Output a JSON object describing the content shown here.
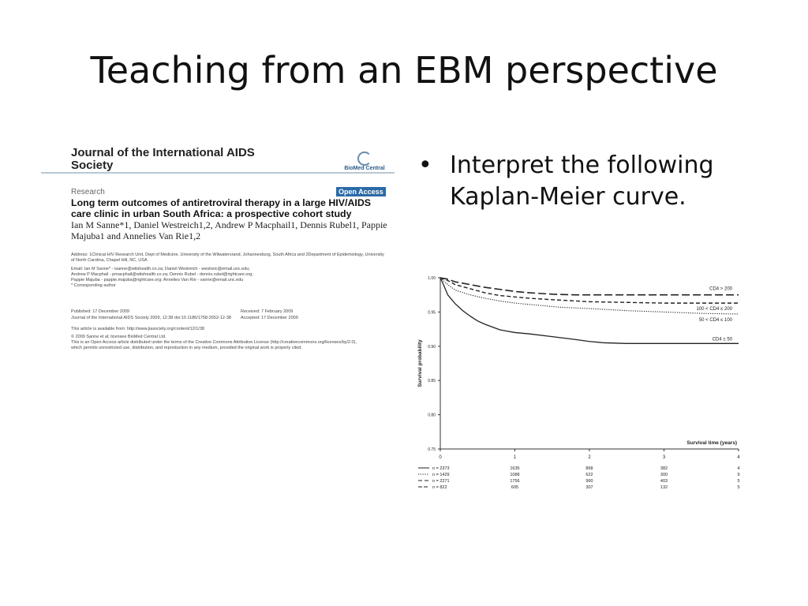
{
  "slide": {
    "title": "Teaching from an EBM perspective",
    "bullet_symbol": "•",
    "bullet_text": "Interpret the following Kaplan-Meier curve."
  },
  "article": {
    "journal": "Journal of the International AIDS Society",
    "publisher": "BioMed Central",
    "type": "Research",
    "open_access": "Open Access",
    "title": "Long term outcomes of antiretroviral therapy in a large HIV/AIDS care clinic in urban South Africa: a prospective cohort study",
    "authors": "Ian M Sanne*1, Daniel Westreich1,2, Andrew P Macphail1, Dennis Rubel1, Pappie Majuba1 and Annelies Van Rie1,2",
    "address": "Address: 1Clinical HIV Research Unit, Dept of Medicine, University of the Witwatersrand, Johannesburg, South Africa and 2Department of Epidemiology, University of North Carolina, Chapel Hill, NC, USA",
    "emails": [
      "Email: Ian M Sanne* - isanne@witshealth.co.za; Daniel Westreich - westreic@email.unc.edu;",
      "Andrew P Macphail - pmacphail@witshealth.co.za; Dennis Rubel - dennis.rubel@rightcare.org;",
      "Pappie Majuba - pappie.majuba@rightcare.org; Annelies Van Rie - vanrie@email.unc.edu",
      "* Corresponding author"
    ],
    "published": "Published: 17 December 2009",
    "citation": "Journal of the International AIDS Society 2009, 12:38   doi:10.1186/1758-2652-12-38",
    "received": "Received: 7 February 2009",
    "accepted": "Accepted: 17 December 2009",
    "available": "This article is available from: http://www.jiasociety.org/content/12/1/38",
    "copyright": "© 2009 Sanne et al; licensee BioMed Central Ltd.",
    "license_1": "This is an Open Access article distributed under the terms of the Creative Commons Attribution License (http://creativecommons.org/licenses/by/2.0),",
    "license_2": "which permits unrestricted use, distribution, and reproduction in any medium, provided the original work is properly cited."
  },
  "chart_data": {
    "type": "line",
    "title": "",
    "xlabel": "Survival time (years)",
    "ylabel": "Survival probability",
    "xlim": [
      0,
      4
    ],
    "ylim": [
      0.75,
      1.0
    ],
    "x_ticks": [
      "0",
      "1",
      "2",
      "3",
      "4"
    ],
    "y_ticks": [
      "0.75",
      "0.80",
      "0.85",
      "0.90",
      "0.95",
      "1.00"
    ],
    "series": [
      {
        "name": "CD4 > 200",
        "style": "long-dash",
        "points": [
          [
            0,
            1.0
          ],
          [
            0.1,
            0.998
          ],
          [
            0.2,
            0.994
          ],
          [
            0.4,
            0.99
          ],
          [
            0.6,
            0.986
          ],
          [
            0.8,
            0.983
          ],
          [
            1.0,
            0.98
          ],
          [
            1.2,
            0.978
          ],
          [
            1.5,
            0.976
          ],
          [
            1.8,
            0.975
          ],
          [
            2.0,
            0.975
          ],
          [
            3.0,
            0.975
          ],
          [
            4.0,
            0.975
          ]
        ],
        "n_at_risk": [
          "822",
          "605",
          "307",
          "132",
          "5"
        ]
      },
      {
        "name": "100 < CD4 ≤ 200",
        "style": "dash",
        "points": [
          [
            0,
            1.0
          ],
          [
            0.1,
            0.996
          ],
          [
            0.2,
            0.99
          ],
          [
            0.4,
            0.984
          ],
          [
            0.6,
            0.978
          ],
          [
            0.8,
            0.974
          ],
          [
            1.0,
            0.972
          ],
          [
            1.2,
            0.97
          ],
          [
            1.5,
            0.968
          ],
          [
            2.0,
            0.965
          ],
          [
            2.5,
            0.964
          ],
          [
            3.0,
            0.963
          ],
          [
            4.0,
            0.963
          ]
        ],
        "n_at_risk": [
          "2271",
          "1756",
          "960",
          "403",
          "5"
        ]
      },
      {
        "name": "50 < CD4 ≤ 100",
        "style": "dot",
        "points": [
          [
            0,
            1.0
          ],
          [
            0.1,
            0.99
          ],
          [
            0.2,
            0.982
          ],
          [
            0.4,
            0.975
          ],
          [
            0.6,
            0.97
          ],
          [
            0.8,
            0.966
          ],
          [
            1.0,
            0.963
          ],
          [
            1.3,
            0.96
          ],
          [
            1.6,
            0.957
          ],
          [
            2.0,
            0.955
          ],
          [
            2.5,
            0.952
          ],
          [
            3.0,
            0.95
          ],
          [
            3.5,
            0.948
          ],
          [
            4.0,
            0.947
          ]
        ],
        "n_at_risk": [
          "1429",
          "1088",
          "622",
          "300",
          "9"
        ]
      },
      {
        "name": "CD4 ≤ 50",
        "style": "solid",
        "points": [
          [
            0,
            1.0
          ],
          [
            0.05,
            0.988
          ],
          [
            0.1,
            0.975
          ],
          [
            0.2,
            0.962
          ],
          [
            0.3,
            0.952
          ],
          [
            0.4,
            0.944
          ],
          [
            0.5,
            0.937
          ],
          [
            0.6,
            0.932
          ],
          [
            0.7,
            0.928
          ],
          [
            0.8,
            0.924
          ],
          [
            1.0,
            0.92
          ],
          [
            1.2,
            0.918
          ],
          [
            1.5,
            0.914
          ],
          [
            1.8,
            0.91
          ],
          [
            2.0,
            0.907
          ],
          [
            2.2,
            0.905
          ],
          [
            2.5,
            0.904
          ],
          [
            3.0,
            0.904
          ],
          [
            4.0,
            0.904
          ]
        ],
        "n_at_risk": [
          "2373",
          "1635",
          "868",
          "382",
          "4"
        ]
      }
    ],
    "n_at_risk_prefix": "n ="
  }
}
